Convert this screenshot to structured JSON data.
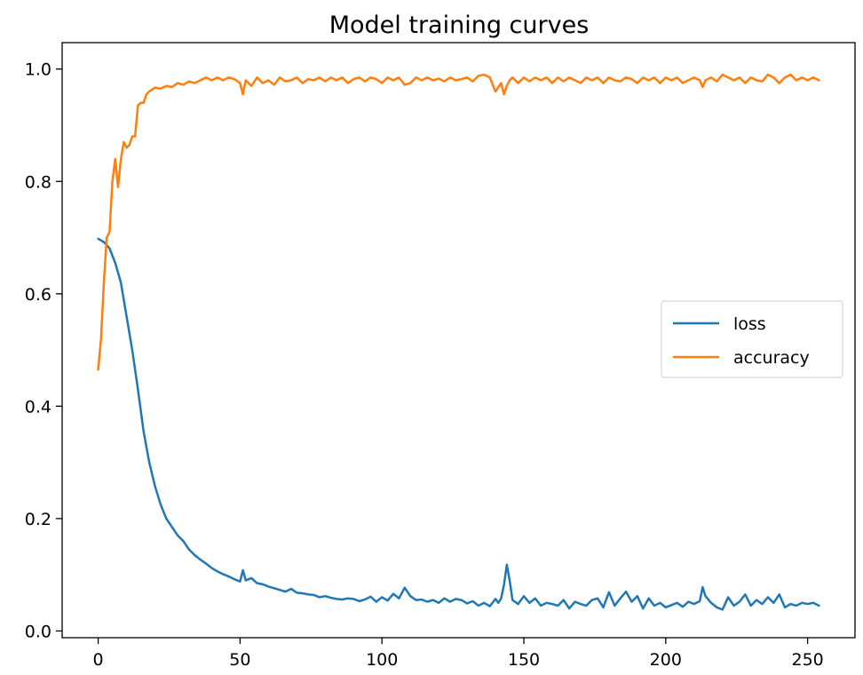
{
  "chart_data": {
    "type": "line",
    "title": "Model training curves",
    "xlabel": "",
    "ylabel": "",
    "xlim": [
      -12.7,
      266.7
    ],
    "ylim": [
      -0.012,
      1.047
    ],
    "xticks": [
      0,
      50,
      100,
      150,
      200,
      250
    ],
    "yticks": [
      0.0,
      0.2,
      0.4,
      0.6,
      0.8,
      1.0
    ],
    "grid": false,
    "legend_position": "center-right",
    "series": [
      {
        "name": "loss",
        "color": "#1f77b4",
        "x": [
          0,
          2,
          4,
          6,
          8,
          10,
          12,
          14,
          16,
          18,
          20,
          22,
          24,
          26,
          28,
          30,
          32,
          34,
          36,
          38,
          40,
          42,
          44,
          46,
          48,
          50,
          51,
          52,
          54,
          56,
          58,
          60,
          62,
          64,
          66,
          68,
          70,
          72,
          74,
          76,
          78,
          80,
          82,
          84,
          86,
          88,
          90,
          92,
          94,
          96,
          98,
          100,
          102,
          104,
          106,
          108,
          110,
          112,
          114,
          116,
          118,
          120,
          122,
          124,
          126,
          128,
          130,
          132,
          134,
          136,
          138,
          140,
          141,
          142,
          143,
          144,
          145,
          146,
          148,
          150,
          152,
          154,
          156,
          158,
          160,
          162,
          164,
          166,
          168,
          170,
          172,
          174,
          176,
          178,
          180,
          182,
          184,
          186,
          188,
          190,
          192,
          194,
          196,
          198,
          200,
          202,
          204,
          206,
          208,
          210,
          212,
          213,
          214,
          216,
          218,
          220,
          222,
          224,
          226,
          228,
          230,
          232,
          234,
          236,
          238,
          240,
          242,
          244,
          246,
          248,
          250,
          252,
          254
        ],
        "y": [
          0.698,
          0.692,
          0.681,
          0.655,
          0.62,
          0.56,
          0.5,
          0.43,
          0.355,
          0.3,
          0.258,
          0.225,
          0.2,
          0.185,
          0.17,
          0.16,
          0.145,
          0.135,
          0.127,
          0.12,
          0.112,
          0.106,
          0.101,
          0.097,
          0.092,
          0.088,
          0.108,
          0.09,
          0.094,
          0.085,
          0.083,
          0.079,
          0.076,
          0.073,
          0.07,
          0.075,
          0.068,
          0.067,
          0.065,
          0.064,
          0.06,
          0.062,
          0.059,
          0.057,
          0.056,
          0.058,
          0.057,
          0.053,
          0.056,
          0.061,
          0.052,
          0.06,
          0.054,
          0.066,
          0.058,
          0.077,
          0.062,
          0.055,
          0.056,
          0.052,
          0.055,
          0.05,
          0.058,
          0.052,
          0.057,
          0.055,
          0.049,
          0.053,
          0.045,
          0.05,
          0.044,
          0.057,
          0.05,
          0.058,
          0.082,
          0.118,
          0.09,
          0.055,
          0.048,
          0.062,
          0.05,
          0.058,
          0.045,
          0.05,
          0.048,
          0.045,
          0.055,
          0.04,
          0.052,
          0.048,
          0.045,
          0.055,
          0.058,
          0.042,
          0.069,
          0.045,
          0.058,
          0.07,
          0.052,
          0.062,
          0.04,
          0.058,
          0.045,
          0.05,
          0.042,
          0.046,
          0.05,
          0.043,
          0.052,
          0.048,
          0.053,
          0.078,
          0.062,
          0.05,
          0.042,
          0.038,
          0.06,
          0.045,
          0.052,
          0.065,
          0.045,
          0.055,
          0.048,
          0.06,
          0.05,
          0.065,
          0.042,
          0.048,
          0.045,
          0.05,
          0.048,
          0.05,
          0.045
        ]
      },
      {
        "name": "accuracy",
        "color": "#ff7f0e",
        "x": [
          0,
          1,
          2,
          3,
          4,
          5,
          6,
          7,
          8,
          9,
          10,
          11,
          12,
          13,
          14,
          15,
          16,
          17,
          18,
          20,
          22,
          24,
          26,
          28,
          30,
          32,
          34,
          36,
          38,
          40,
          42,
          44,
          46,
          48,
          50,
          51,
          52,
          54,
          56,
          58,
          60,
          62,
          64,
          66,
          68,
          70,
          72,
          74,
          76,
          78,
          80,
          82,
          84,
          86,
          88,
          90,
          92,
          94,
          96,
          98,
          100,
          102,
          104,
          106,
          108,
          110,
          112,
          114,
          116,
          118,
          120,
          122,
          124,
          126,
          128,
          130,
          132,
          134,
          136,
          138,
          140,
          142,
          143,
          144,
          145,
          146,
          148,
          150,
          152,
          154,
          156,
          158,
          160,
          162,
          164,
          166,
          168,
          170,
          172,
          174,
          176,
          178,
          180,
          182,
          184,
          186,
          188,
          190,
          192,
          194,
          196,
          198,
          200,
          202,
          204,
          206,
          208,
          210,
          212,
          213,
          214,
          216,
          218,
          220,
          222,
          224,
          226,
          228,
          230,
          232,
          234,
          236,
          238,
          240,
          242,
          244,
          246,
          248,
          250,
          252,
          254
        ],
        "y": [
          0.465,
          0.52,
          0.62,
          0.7,
          0.71,
          0.8,
          0.84,
          0.79,
          0.84,
          0.87,
          0.86,
          0.865,
          0.88,
          0.88,
          0.935,
          0.94,
          0.94,
          0.955,
          0.96,
          0.967,
          0.965,
          0.97,
          0.968,
          0.975,
          0.972,
          0.978,
          0.975,
          0.98,
          0.985,
          0.98,
          0.985,
          0.98,
          0.985,
          0.982,
          0.975,
          0.955,
          0.98,
          0.97,
          0.985,
          0.975,
          0.98,
          0.972,
          0.985,
          0.978,
          0.98,
          0.985,
          0.975,
          0.982,
          0.98,
          0.985,
          0.978,
          0.985,
          0.98,
          0.985,
          0.975,
          0.982,
          0.985,
          0.978,
          0.985,
          0.982,
          0.975,
          0.985,
          0.98,
          0.985,
          0.972,
          0.975,
          0.985,
          0.98,
          0.985,
          0.98,
          0.983,
          0.978,
          0.985,
          0.98,
          0.982,
          0.985,
          0.978,
          0.988,
          0.99,
          0.985,
          0.96,
          0.975,
          0.955,
          0.97,
          0.98,
          0.985,
          0.975,
          0.985,
          0.978,
          0.985,
          0.98,
          0.985,
          0.975,
          0.985,
          0.978,
          0.985,
          0.98,
          0.975,
          0.985,
          0.98,
          0.985,
          0.975,
          0.985,
          0.98,
          0.978,
          0.985,
          0.982,
          0.975,
          0.985,
          0.98,
          0.985,
          0.975,
          0.985,
          0.98,
          0.985,
          0.975,
          0.98,
          0.985,
          0.98,
          0.968,
          0.98,
          0.985,
          0.978,
          0.99,
          0.985,
          0.98,
          0.985,
          0.975,
          0.985,
          0.98,
          0.978,
          0.99,
          0.985,
          0.975,
          0.985,
          0.99,
          0.98,
          0.985,
          0.98,
          0.985,
          0.98
        ]
      }
    ]
  }
}
